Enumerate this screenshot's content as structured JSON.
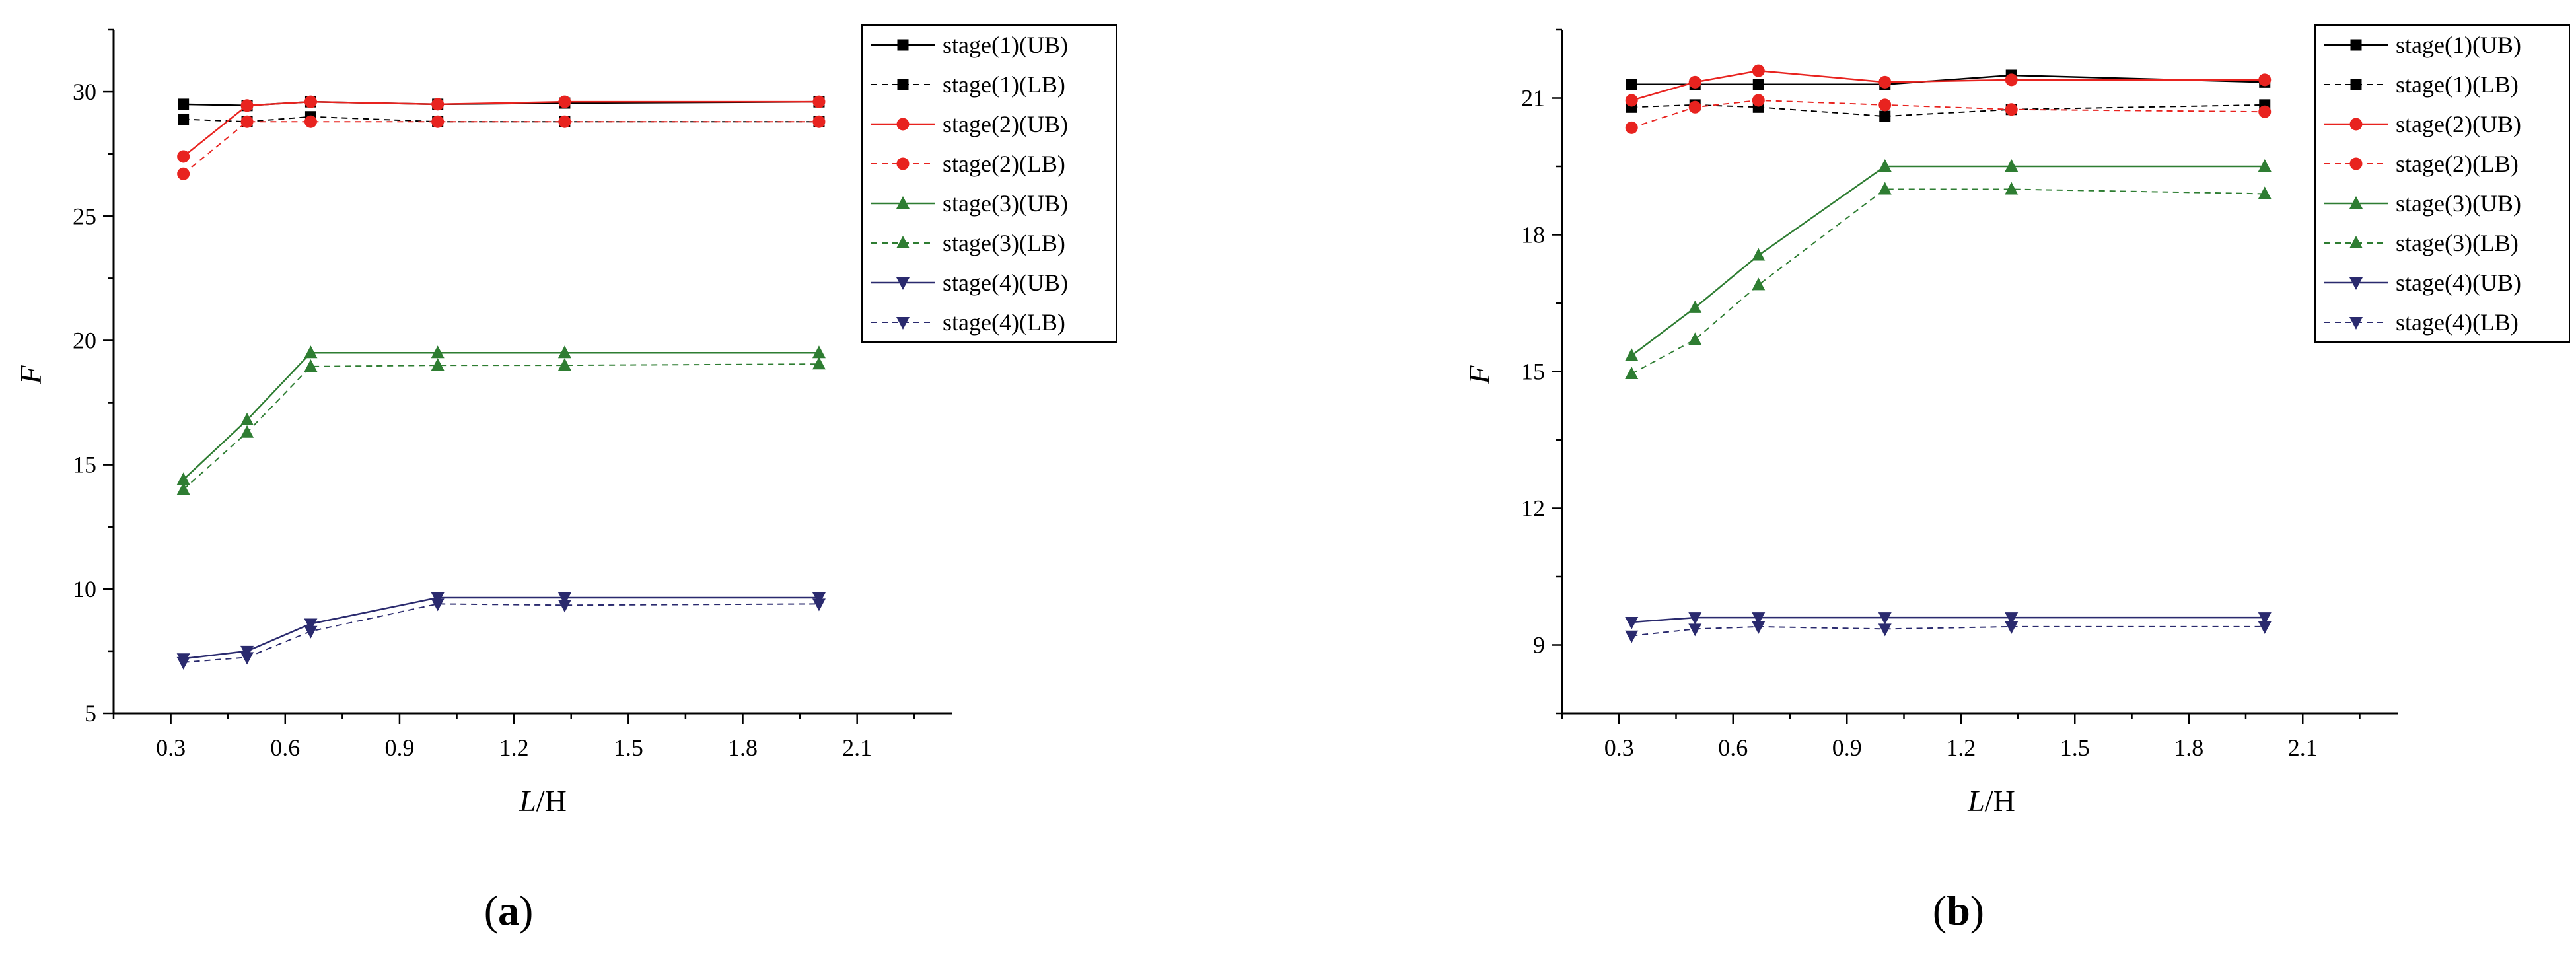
{
  "chart_data": [
    {
      "type": "line",
      "panel_label_open": "(",
      "panel_label": "a",
      "panel_label_close": ")",
      "xlabel_italic": "L",
      "xlabel_rest": "/H",
      "ylabel": "F",
      "xlim": [
        0.15,
        2.35
      ],
      "ylim": [
        5,
        32.5
      ],
      "xticks": [
        0.3,
        0.6,
        0.9,
        1.2,
        1.5,
        1.8,
        2.1
      ],
      "xtick_labels": [
        "0.3",
        "0.6",
        "0.9",
        "1.2",
        "1.5",
        "1.8",
        "2.1"
      ],
      "yticks": [
        5,
        10,
        15,
        20,
        25,
        30
      ],
      "ytick_labels": [
        "5",
        "10",
        "15",
        "20",
        "25",
        "30"
      ],
      "legend_position": "top-right",
      "x": [
        0.333,
        0.5,
        0.667,
        1.0,
        1.333,
        2.0
      ],
      "series": [
        {
          "name": "stage(1)(UB)",
          "color": "#000000",
          "marker": "square",
          "dashed": false,
          "values": [
            29.5,
            29.45,
            29.6,
            29.5,
            29.55,
            29.6
          ]
        },
        {
          "name": "stage(1)(LB)",
          "color": "#000000",
          "marker": "square",
          "dashed": true,
          "values": [
            28.9,
            28.8,
            29.0,
            28.8,
            28.8,
            28.8
          ]
        },
        {
          "name": "stage(2)(UB)",
          "color": "#e8231f",
          "marker": "circle",
          "dashed": false,
          "values": [
            27.4,
            29.45,
            29.6,
            29.5,
            29.6,
            29.6
          ]
        },
        {
          "name": "stage(2)(LB)",
          "color": "#e8231f",
          "marker": "circle",
          "dashed": true,
          "values": [
            26.7,
            28.8,
            28.8,
            28.8,
            28.8,
            28.8
          ]
        },
        {
          "name": "stage(3)(UB)",
          "color": "#2e7d32",
          "marker": "triangle-up",
          "dashed": false,
          "values": [
            14.4,
            16.8,
            19.5,
            19.5,
            19.5,
            19.5
          ]
        },
        {
          "name": "stage(3)(LB)",
          "color": "#2e7d32",
          "marker": "triangle-up",
          "dashed": true,
          "values": [
            14.0,
            16.3,
            18.95,
            19.0,
            19.0,
            19.05
          ]
        },
        {
          "name": "stage(4)(UB)",
          "color": "#2a2a6e",
          "marker": "triangle-down",
          "dashed": false,
          "values": [
            7.2,
            7.5,
            8.6,
            9.65,
            9.65,
            9.65
          ]
        },
        {
          "name": "stage(4)(LB)",
          "color": "#2a2a6e",
          "marker": "triangle-down",
          "dashed": true,
          "values": [
            7.05,
            7.25,
            8.3,
            9.4,
            9.35,
            9.4
          ]
        }
      ]
    },
    {
      "type": "line",
      "panel_label_open": "(",
      "panel_label": "b",
      "panel_label_close": ")",
      "xlabel_italic": "L",
      "xlabel_rest": "/H",
      "ylabel": "F",
      "xlim": [
        0.15,
        2.35
      ],
      "ylim": [
        7.5,
        22.5
      ],
      "xticks": [
        0.3,
        0.6,
        0.9,
        1.2,
        1.5,
        1.8,
        2.1
      ],
      "xtick_labels": [
        "0.3",
        "0.6",
        "0.9",
        "1.2",
        "1.5",
        "1.8",
        "2.1"
      ],
      "yticks": [
        9,
        12,
        15,
        18,
        21
      ],
      "ytick_labels": [
        "9",
        "12",
        "15",
        "18",
        "21"
      ],
      "legend_position": "top-right",
      "x": [
        0.333,
        0.5,
        0.667,
        1.0,
        1.333,
        2.0
      ],
      "series": [
        {
          "name": "stage(1)(UB)",
          "color": "#000000",
          "marker": "square",
          "dashed": false,
          "values": [
            21.3,
            21.3,
            21.3,
            21.3,
            21.5,
            21.35
          ]
        },
        {
          "name": "stage(1)(LB)",
          "color": "#000000",
          "marker": "square",
          "dashed": true,
          "values": [
            20.8,
            20.85,
            20.8,
            20.6,
            20.75,
            20.85
          ]
        },
        {
          "name": "stage(2)(UB)",
          "color": "#e8231f",
          "marker": "circle",
          "dashed": false,
          "values": [
            20.95,
            21.35,
            21.6,
            21.35,
            21.4,
            21.4
          ]
        },
        {
          "name": "stage(2)(LB)",
          "color": "#e8231f",
          "marker": "circle",
          "dashed": true,
          "values": [
            20.35,
            20.8,
            20.95,
            20.85,
            20.75,
            20.7
          ]
        },
        {
          "name": "stage(3)(UB)",
          "color": "#2e7d32",
          "marker": "triangle-up",
          "dashed": false,
          "values": [
            15.35,
            16.4,
            17.55,
            19.5,
            19.5,
            19.5
          ]
        },
        {
          "name": "stage(3)(LB)",
          "color": "#2e7d32",
          "marker": "triangle-up",
          "dashed": true,
          "values": [
            14.95,
            15.7,
            16.9,
            19.0,
            19.0,
            18.9
          ]
        },
        {
          "name": "stage(4)(UB)",
          "color": "#2a2a6e",
          "marker": "triangle-down",
          "dashed": false,
          "values": [
            9.5,
            9.6,
            9.6,
            9.6,
            9.6,
            9.6
          ]
        },
        {
          "name": "stage(4)(LB)",
          "color": "#2a2a6e",
          "marker": "triangle-down",
          "dashed": true,
          "values": [
            9.2,
            9.35,
            9.4,
            9.35,
            9.4,
            9.4
          ]
        }
      ]
    }
  ]
}
